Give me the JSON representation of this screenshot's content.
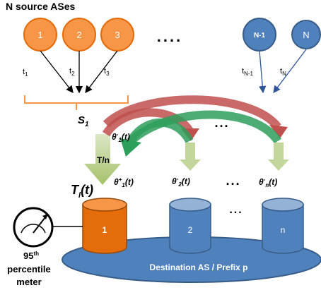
{
  "title": "N source ASes",
  "sources": [
    {
      "label": "1",
      "edge": "t",
      "edge_sub": "1"
    },
    {
      "label": "2",
      "edge": "t",
      "edge_sub": "2"
    },
    {
      "label": "3",
      "edge": "t",
      "edge_sub": "3"
    },
    {
      "label": "N-1",
      "edge": "t",
      "edge_sub": "N-1"
    },
    {
      "label": "N",
      "edge": "t",
      "edge_sub": "N"
    }
  ],
  "ellipsis": "....",
  "sum_label": {
    "main": "S",
    "sub": "1"
  },
  "theta_minus_1": {
    "main": "θ",
    "sup": "-",
    "sub": "1",
    "tail": "(t)"
  },
  "theta_plus_1": {
    "main": "θ",
    "sup": "+",
    "sub": "1",
    "tail": "(t)"
  },
  "theta_minus_2": {
    "main": "θ",
    "sup": "-",
    "sub": "2",
    "tail": "(t)"
  },
  "theta_minus_n": {
    "main": "θ",
    "sup": "-",
    "sub": "n",
    "tail": "(t)"
  },
  "share_label": "T/n",
  "total_label": {
    "main": "T",
    "sub": "l",
    "tail": "(t)"
  },
  "dots": "...",
  "cylinders": [
    {
      "label": "1",
      "color": "#e46c0a"
    },
    {
      "label": "2",
      "color": "#4f81bd"
    },
    {
      "label": "n",
      "color": "#4f81bd"
    }
  ],
  "destination_label": "Destination AS / Prefix p",
  "meter": {
    "line1_main": "95",
    "line1_sup": "th",
    "line2": "percentile",
    "line3": "meter"
  },
  "colors": {
    "orange": "#f79646",
    "orange_dark": "#e46c0a",
    "blue": "#4f81bd",
    "blue_light": "#95b3d7",
    "red": "#c0504d",
    "green": "#2e9e5b",
    "light_green": "#c3d69b"
  }
}
